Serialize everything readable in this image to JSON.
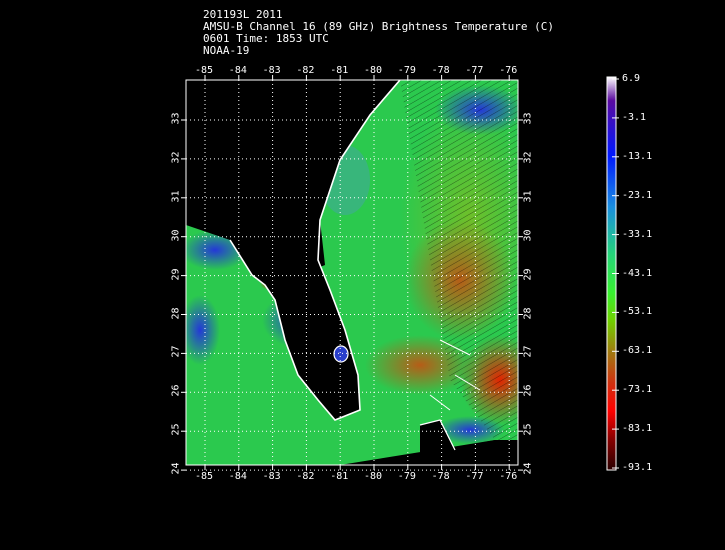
{
  "header": {
    "line1": "201193L 2011",
    "line2": "AMSU-B Channel 16 (89 GHz) Brightness Temperature (C)",
    "line3": "0601 Time: 1853 UTC",
    "line4": "NOAA-19"
  },
  "map": {
    "lon_labels": [
      "-85",
      "-84",
      "-83",
      "-82",
      "-81",
      "-80",
      "-79",
      "-78",
      "-77",
      "-76"
    ],
    "lat_labels": [
      "33",
      "32",
      "31",
      "30",
      "29",
      "28",
      "27",
      "26",
      "25",
      "24"
    ],
    "colors": {
      "land": "#000000",
      "coast": "#ffffff",
      "grid": "#ffffff"
    }
  },
  "colorbar": {
    "ticks": [
      "6.9",
      "-3.1",
      "-13.1",
      "-23.1",
      "-33.1",
      "-43.1",
      "-53.1",
      "-63.1",
      "-73.1",
      "-83.1",
      "-93.1"
    ]
  }
}
